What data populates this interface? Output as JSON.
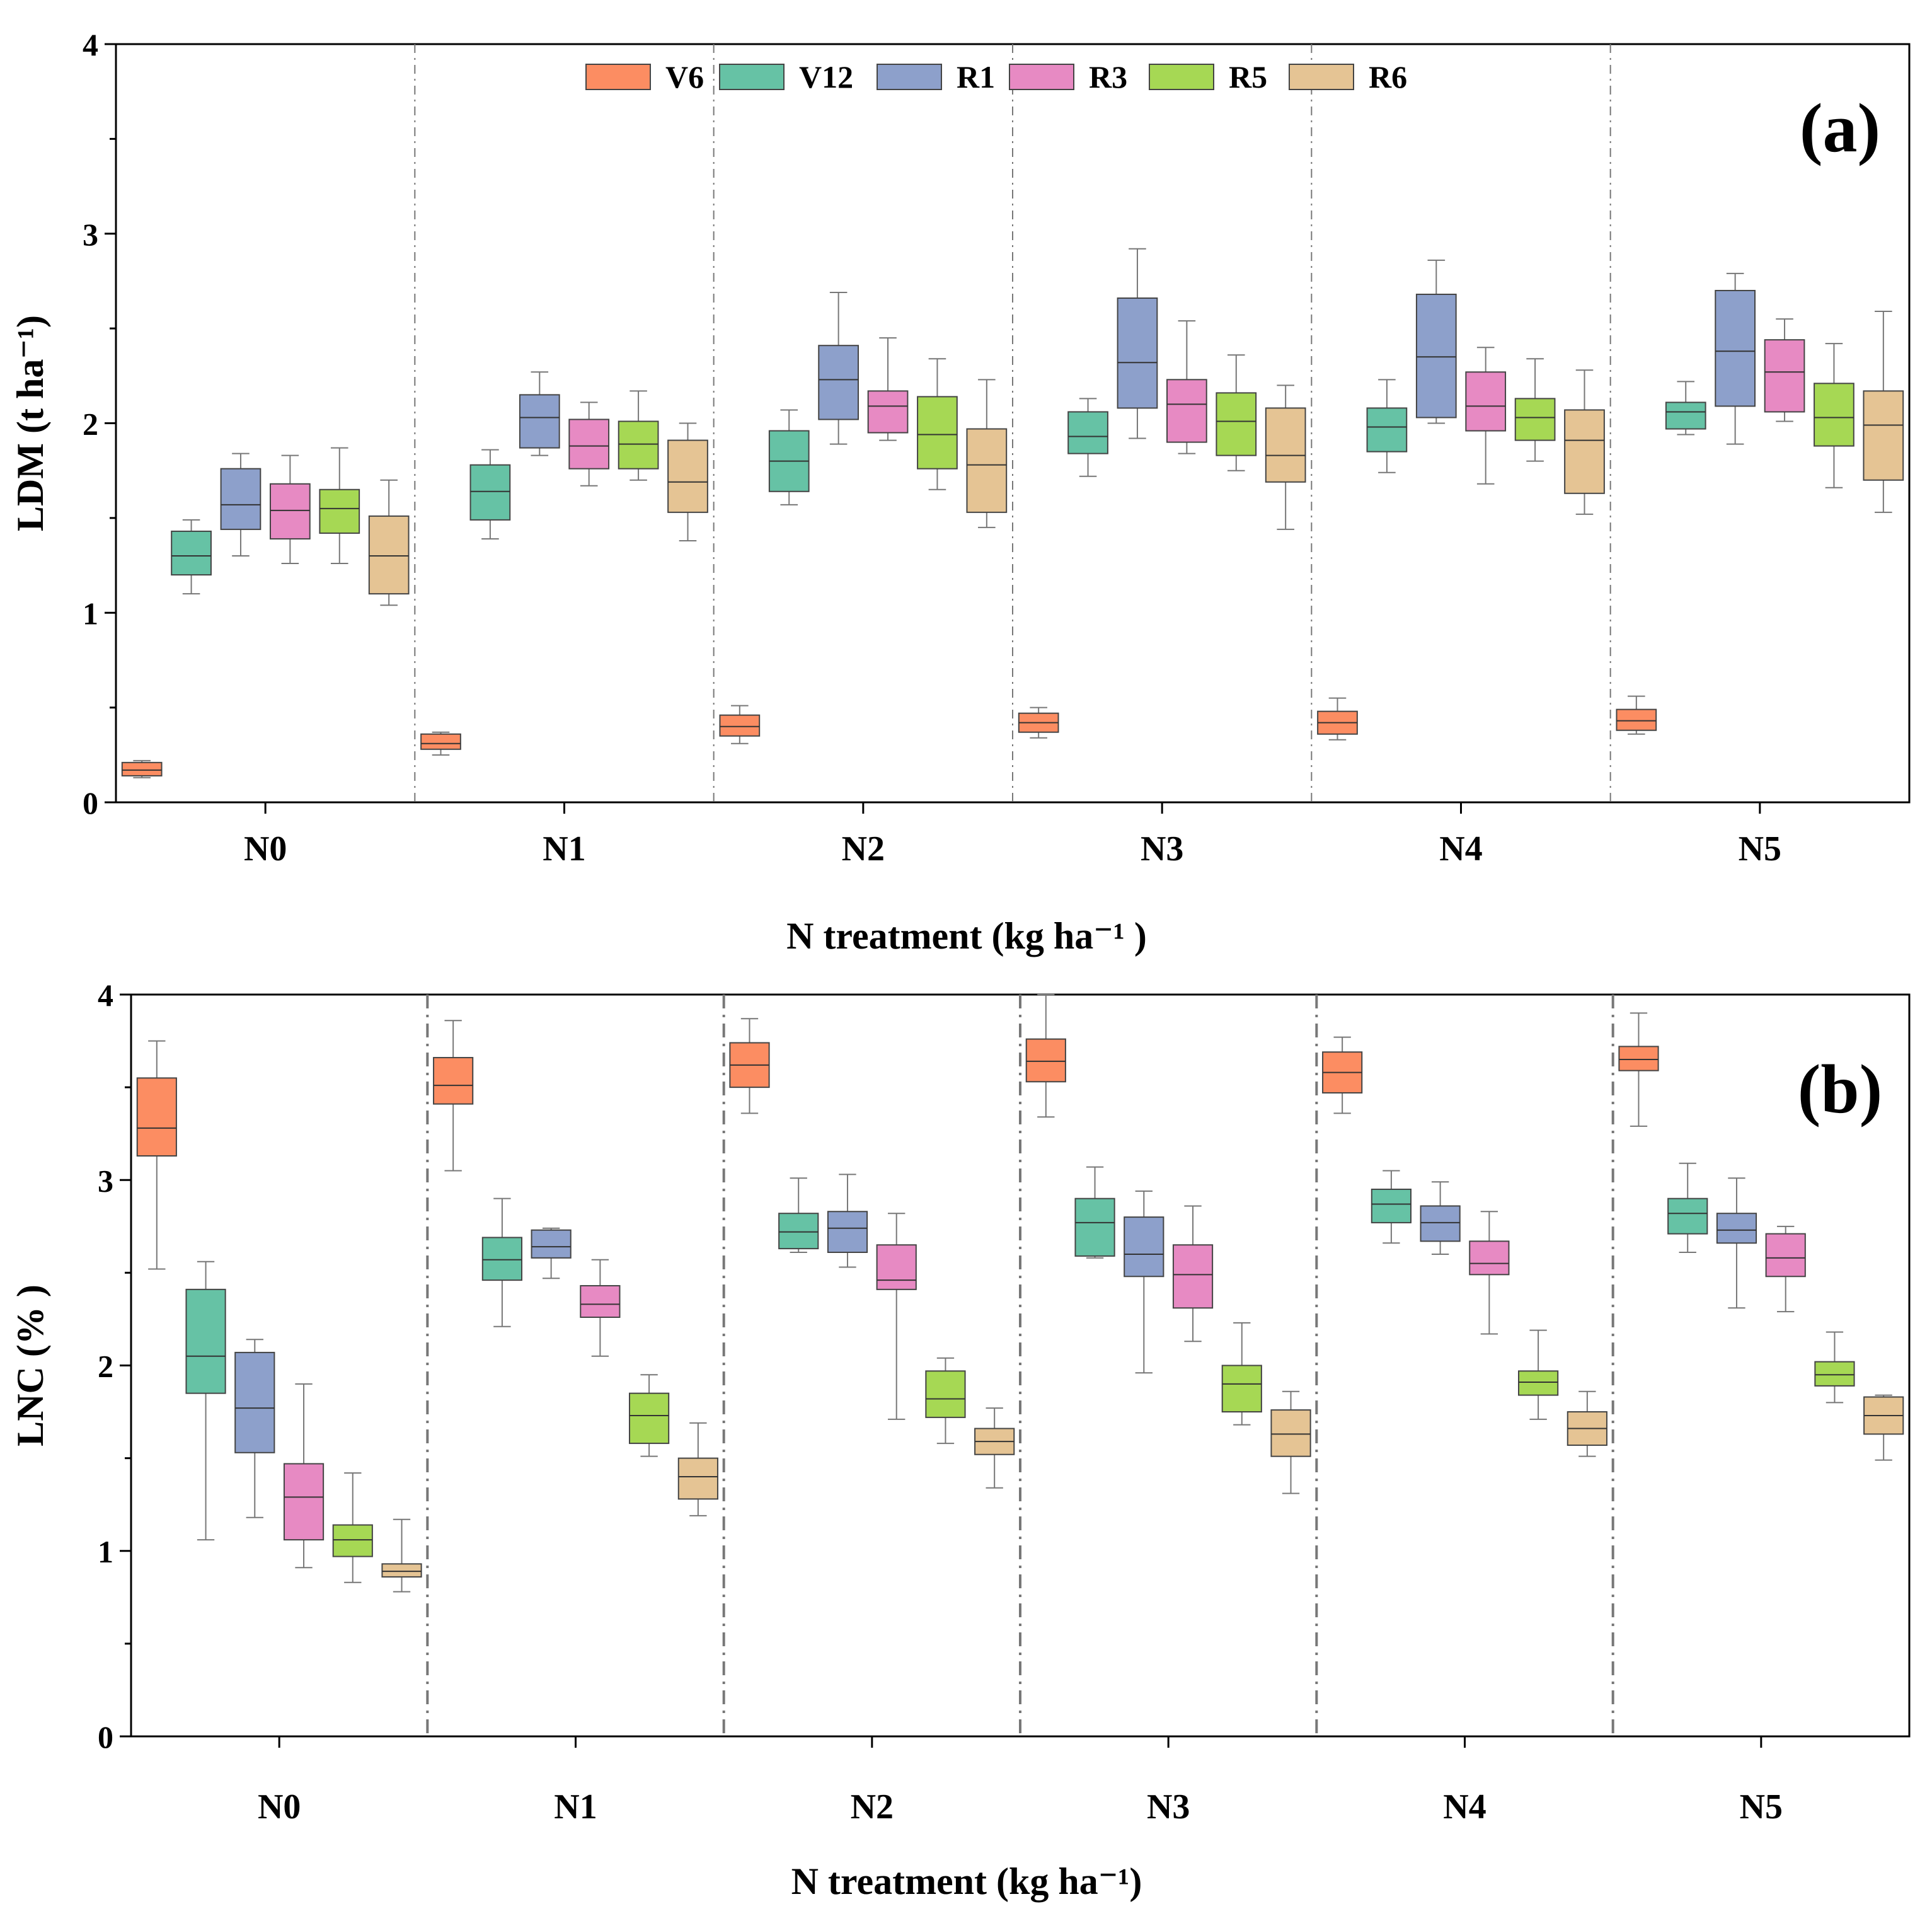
{
  "colors": {
    "V6": "#FC8D62",
    "V12": "#66C2A5",
    "R1": "#8DA0CB",
    "R3": "#E78AC3",
    "R5": "#A6D854",
    "R6": "#E5C494",
    "axis": "#000000",
    "whisker": "#777777",
    "divider": "#777777"
  },
  "chart_data": [
    {
      "type": "box",
      "panel_label": "(a)",
      "ylabel": "LDM (t ha⁻¹)",
      "xlabel": "N treatment (kg ha⁻¹ )",
      "ylim": [
        0,
        4
      ],
      "yticks": [
        0,
        1,
        2,
        3,
        4
      ],
      "legend": {
        "position": "top-center",
        "entries": [
          "V6",
          "V12",
          "R1",
          "R3",
          "R5",
          "R6"
        ]
      },
      "categories": [
        "N0",
        "N1",
        "N2",
        "N3",
        "N4",
        "N5"
      ],
      "series": [
        {
          "name": "V6",
          "boxes": [
            {
              "min": 0.13,
              "q1": 0.14,
              "median": 0.17,
              "q3": 0.21,
              "max": 0.22
            },
            {
              "min": 0.25,
              "q1": 0.28,
              "median": 0.31,
              "q3": 0.36,
              "max": 0.37
            },
            {
              "min": 0.31,
              "q1": 0.35,
              "median": 0.4,
              "q3": 0.46,
              "max": 0.51
            },
            {
              "min": 0.34,
              "q1": 0.37,
              "median": 0.42,
              "q3": 0.47,
              "max": 0.5
            },
            {
              "min": 0.33,
              "q1": 0.36,
              "median": 0.42,
              "q3": 0.48,
              "max": 0.55
            },
            {
              "min": 0.36,
              "q1": 0.38,
              "median": 0.43,
              "q3": 0.49,
              "max": 0.56
            }
          ]
        },
        {
          "name": "V12",
          "boxes": [
            {
              "min": 1.1,
              "q1": 1.2,
              "median": 1.3,
              "q3": 1.43,
              "max": 1.49
            },
            {
              "min": 1.39,
              "q1": 1.49,
              "median": 1.64,
              "q3": 1.78,
              "max": 1.86
            },
            {
              "min": 1.57,
              "q1": 1.64,
              "median": 1.8,
              "q3": 1.96,
              "max": 2.07
            },
            {
              "min": 1.72,
              "q1": 1.84,
              "median": 1.93,
              "q3": 2.06,
              "max": 2.13
            },
            {
              "min": 1.74,
              "q1": 1.85,
              "median": 1.98,
              "q3": 2.08,
              "max": 2.23
            },
            {
              "min": 1.94,
              "q1": 1.97,
              "median": 2.06,
              "q3": 2.11,
              "max": 2.22
            }
          ]
        },
        {
          "name": "R1",
          "boxes": [
            {
              "min": 1.3,
              "q1": 1.44,
              "median": 1.57,
              "q3": 1.76,
              "max": 1.84
            },
            {
              "min": 1.83,
              "q1": 1.87,
              "median": 2.03,
              "q3": 2.15,
              "max": 2.27
            },
            {
              "min": 1.89,
              "q1": 2.02,
              "median": 2.23,
              "q3": 2.41,
              "max": 2.69
            },
            {
              "min": 1.92,
              "q1": 2.08,
              "median": 2.32,
              "q3": 2.66,
              "max": 2.92
            },
            {
              "min": 2.0,
              "q1": 2.03,
              "median": 2.35,
              "q3": 2.68,
              "max": 2.86
            },
            {
              "min": 1.89,
              "q1": 2.09,
              "median": 2.38,
              "q3": 2.7,
              "max": 2.79
            }
          ]
        },
        {
          "name": "R3",
          "boxes": [
            {
              "min": 1.26,
              "q1": 1.39,
              "median": 1.54,
              "q3": 1.68,
              "max": 1.83
            },
            {
              "min": 1.67,
              "q1": 1.76,
              "median": 1.88,
              "q3": 2.02,
              "max": 2.11
            },
            {
              "min": 1.91,
              "q1": 1.95,
              "median": 2.09,
              "q3": 2.17,
              "max": 2.45
            },
            {
              "min": 1.84,
              "q1": 1.9,
              "median": 2.1,
              "q3": 2.23,
              "max": 2.54
            },
            {
              "min": 1.68,
              "q1": 1.96,
              "median": 2.09,
              "q3": 2.27,
              "max": 2.4
            },
            {
              "min": 2.01,
              "q1": 2.06,
              "median": 2.27,
              "q3": 2.44,
              "max": 2.55
            }
          ]
        },
        {
          "name": "R5",
          "boxes": [
            {
              "min": 1.26,
              "q1": 1.42,
              "median": 1.55,
              "q3": 1.65,
              "max": 1.87
            },
            {
              "min": 1.7,
              "q1": 1.76,
              "median": 1.89,
              "q3": 2.01,
              "max": 2.17
            },
            {
              "min": 1.65,
              "q1": 1.76,
              "median": 1.94,
              "q3": 2.14,
              "max": 2.34
            },
            {
              "min": 1.75,
              "q1": 1.83,
              "median": 2.01,
              "q3": 2.16,
              "max": 2.36
            },
            {
              "min": 1.8,
              "q1": 1.91,
              "median": 2.03,
              "q3": 2.13,
              "max": 2.34
            },
            {
              "min": 1.66,
              "q1": 1.88,
              "median": 2.03,
              "q3": 2.21,
              "max": 2.42
            }
          ]
        },
        {
          "name": "R6",
          "boxes": [
            {
              "min": 1.04,
              "q1": 1.1,
              "median": 1.3,
              "q3": 1.51,
              "max": 1.7
            },
            {
              "min": 1.38,
              "q1": 1.53,
              "median": 1.69,
              "q3": 1.91,
              "max": 2.0
            },
            {
              "min": 1.45,
              "q1": 1.53,
              "median": 1.78,
              "q3": 1.97,
              "max": 2.23
            },
            {
              "min": 1.44,
              "q1": 1.69,
              "median": 1.83,
              "q3": 2.08,
              "max": 2.2
            },
            {
              "min": 1.52,
              "q1": 1.63,
              "median": 1.91,
              "q3": 2.07,
              "max": 2.28
            },
            {
              "min": 1.53,
              "q1": 1.7,
              "median": 1.99,
              "q3": 2.17,
              "max": 2.59
            }
          ]
        }
      ]
    },
    {
      "type": "box",
      "panel_label": "(b)",
      "ylabel": "LNC (% )",
      "xlabel": "N treatment (kg ha⁻¹)",
      "ylim": [
        0,
        4
      ],
      "yticks": [
        0,
        1,
        2,
        3,
        4
      ],
      "categories": [
        "N0",
        "N1",
        "N2",
        "N3",
        "N4",
        "N5"
      ],
      "series": [
        {
          "name": "V6",
          "boxes": [
            {
              "min": 2.52,
              "q1": 3.13,
              "median": 3.28,
              "q3": 3.55,
              "max": 3.75
            },
            {
              "min": 3.05,
              "q1": 3.41,
              "median": 3.51,
              "q3": 3.66,
              "max": 3.86
            },
            {
              "min": 3.36,
              "q1": 3.5,
              "median": 3.62,
              "q3": 3.74,
              "max": 3.87
            },
            {
              "min": 3.34,
              "q1": 3.53,
              "median": 3.64,
              "q3": 3.76,
              "max": 4.0
            },
            {
              "min": 3.36,
              "q1": 3.47,
              "median": 3.58,
              "q3": 3.69,
              "max": 3.77
            },
            {
              "min": 3.29,
              "q1": 3.59,
              "median": 3.65,
              "q3": 3.72,
              "max": 3.9
            }
          ]
        },
        {
          "name": "V12",
          "boxes": [
            {
              "min": 1.06,
              "q1": 1.85,
              "median": 2.05,
              "q3": 2.41,
              "max": 2.56
            },
            {
              "min": 2.21,
              "q1": 2.46,
              "median": 2.57,
              "q3": 2.69,
              "max": 2.9
            },
            {
              "min": 2.61,
              "q1": 2.63,
              "median": 2.72,
              "q3": 2.82,
              "max": 3.01
            },
            {
              "min": 2.58,
              "q1": 2.59,
              "median": 2.77,
              "q3": 2.9,
              "max": 3.07
            },
            {
              "min": 2.66,
              "q1": 2.77,
              "median": 2.87,
              "q3": 2.95,
              "max": 3.05
            },
            {
              "min": 2.61,
              "q1": 2.71,
              "median": 2.82,
              "q3": 2.9,
              "max": 3.09
            }
          ]
        },
        {
          "name": "R1",
          "boxes": [
            {
              "min": 1.18,
              "q1": 1.53,
              "median": 1.77,
              "q3": 2.07,
              "max": 2.14
            },
            {
              "min": 2.47,
              "q1": 2.58,
              "median": 2.64,
              "q3": 2.73,
              "max": 2.74
            },
            {
              "min": 2.53,
              "q1": 2.61,
              "median": 2.74,
              "q3": 2.83,
              "max": 3.03
            },
            {
              "min": 1.96,
              "q1": 2.48,
              "median": 2.6,
              "q3": 2.8,
              "max": 2.94
            },
            {
              "min": 2.6,
              "q1": 2.67,
              "median": 2.77,
              "q3": 2.86,
              "max": 2.99
            },
            {
              "min": 2.31,
              "q1": 2.66,
              "median": 2.73,
              "q3": 2.82,
              "max": 3.01
            }
          ]
        },
        {
          "name": "R3",
          "boxes": [
            {
              "min": 0.91,
              "q1": 1.06,
              "median": 1.29,
              "q3": 1.47,
              "max": 1.9
            },
            {
              "min": 2.05,
              "q1": 2.26,
              "median": 2.33,
              "q3": 2.43,
              "max": 2.57
            },
            {
              "min": 1.71,
              "q1": 2.41,
              "median": 2.46,
              "q3": 2.65,
              "max": 2.82
            },
            {
              "min": 2.13,
              "q1": 2.31,
              "median": 2.49,
              "q3": 2.65,
              "max": 2.86
            },
            {
              "min": 2.17,
              "q1": 2.49,
              "median": 2.55,
              "q3": 2.67,
              "max": 2.83
            },
            {
              "min": 2.29,
              "q1": 2.48,
              "median": 2.58,
              "q3": 2.71,
              "max": 2.75
            }
          ]
        },
        {
          "name": "R5",
          "boxes": [
            {
              "min": 0.83,
              "q1": 0.97,
              "median": 1.06,
              "q3": 1.14,
              "max": 1.42
            },
            {
              "min": 1.51,
              "q1": 1.58,
              "median": 1.73,
              "q3": 1.85,
              "max": 1.95
            },
            {
              "min": 1.58,
              "q1": 1.72,
              "median": 1.82,
              "q3": 1.97,
              "max": 2.04
            },
            {
              "min": 1.68,
              "q1": 1.75,
              "median": 1.9,
              "q3": 2.0,
              "max": 2.23
            },
            {
              "min": 1.71,
              "q1": 1.84,
              "median": 1.91,
              "q3": 1.97,
              "max": 2.19
            },
            {
              "min": 1.8,
              "q1": 1.89,
              "median": 1.95,
              "q3": 2.02,
              "max": 2.18
            }
          ]
        },
        {
          "name": "R6",
          "boxes": [
            {
              "min": 0.78,
              "q1": 0.86,
              "median": 0.89,
              "q3": 0.93,
              "max": 1.17
            },
            {
              "min": 1.19,
              "q1": 1.28,
              "median": 1.4,
              "q3": 1.5,
              "max": 1.69
            },
            {
              "min": 1.34,
              "q1": 1.52,
              "median": 1.59,
              "q3": 1.66,
              "max": 1.77
            },
            {
              "min": 1.31,
              "q1": 1.51,
              "median": 1.63,
              "q3": 1.76,
              "max": 1.86
            },
            {
              "min": 1.51,
              "q1": 1.57,
              "median": 1.66,
              "q3": 1.75,
              "max": 1.86
            },
            {
              "min": 1.49,
              "q1": 1.63,
              "median": 1.73,
              "q3": 1.83,
              "max": 1.84
            }
          ]
        }
      ]
    }
  ]
}
